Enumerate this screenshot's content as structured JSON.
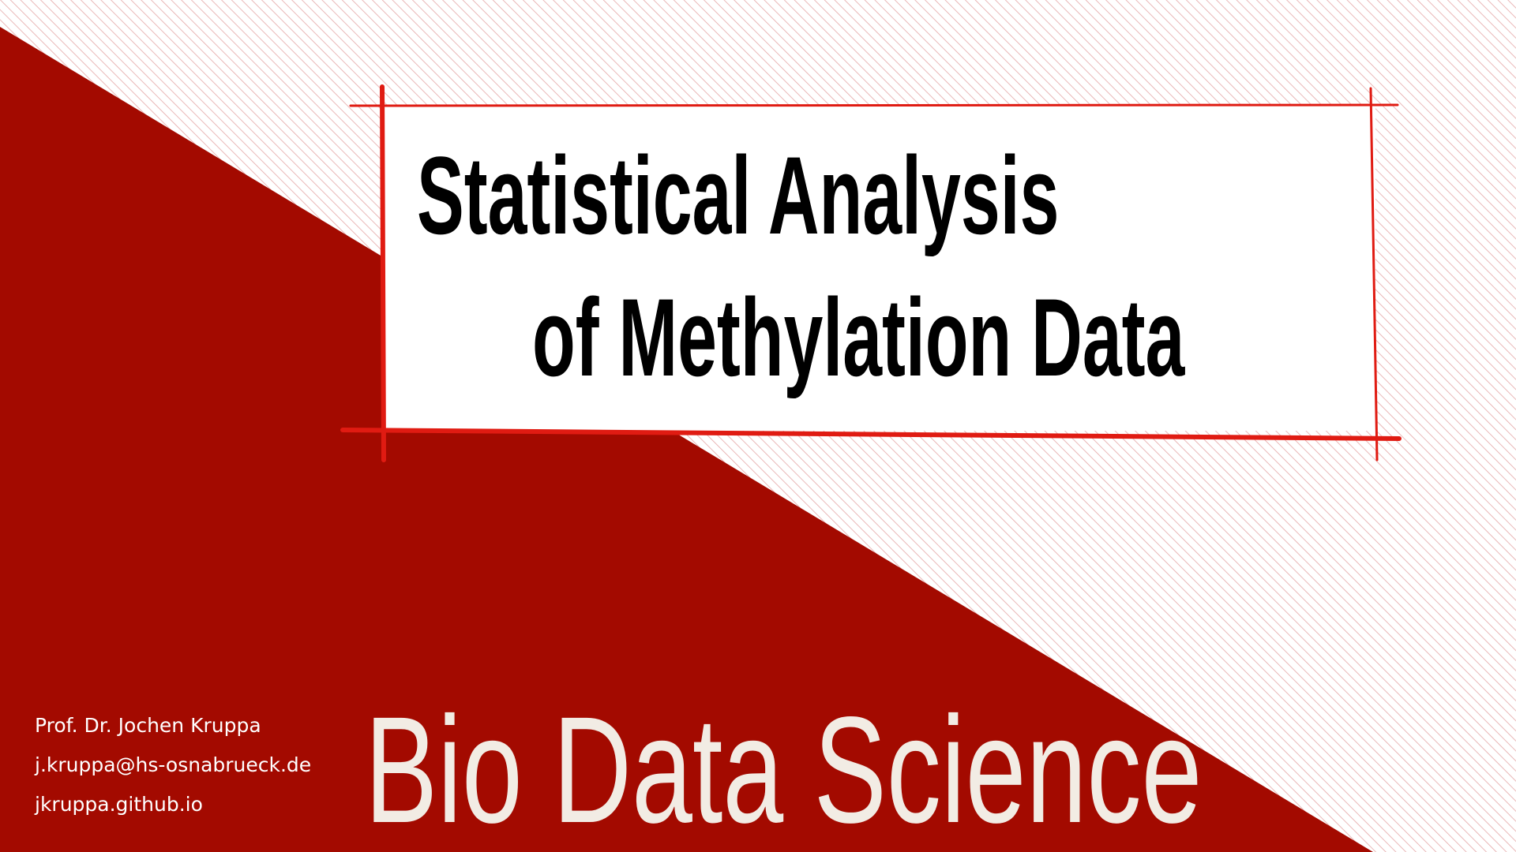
{
  "slide": {
    "title_lines": [
      "Statistical Analysis",
      "of Methylation Data"
    ],
    "brand": "Bio Data Science",
    "author": "Prof. Dr. Jochen Kruppa",
    "email": "j.kruppa@hs-osnabrueck.de",
    "website": "jkruppa.github.io"
  },
  "colors": {
    "dark_red": "#a30a00",
    "frame_red": "#e01b12",
    "hatch_red": "#e5a6a6",
    "brand_text": "#f2ece4",
    "contact_text": "#ffffff"
  }
}
